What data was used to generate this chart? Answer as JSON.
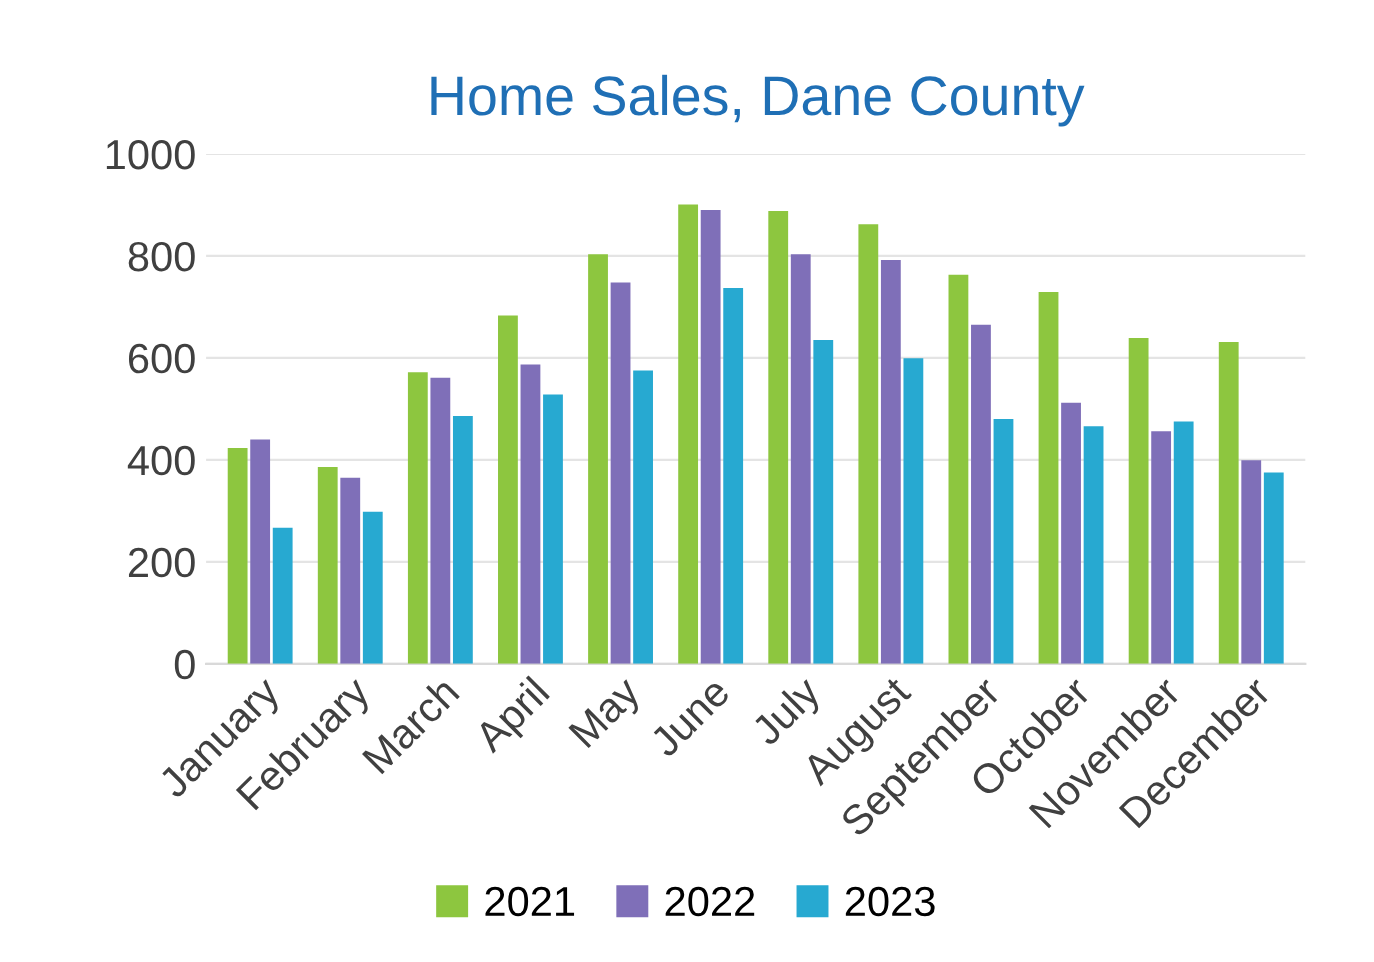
{
  "chart_data": {
    "type": "bar",
    "title": "Home Sales, Dane County",
    "categories": [
      "January",
      "February",
      "March",
      "April",
      "May",
      "June",
      "July",
      "August",
      "September",
      "October",
      "November",
      "December"
    ],
    "series": [
      {
        "name": "2021",
        "color": "#8dc63f",
        "values": [
          423,
          386,
          572,
          683,
          803,
          901,
          888,
          862,
          763,
          729,
          639,
          631
        ]
      },
      {
        "name": "2022",
        "color": "#7f6fb8",
        "values": [
          440,
          365,
          561,
          587,
          748,
          890,
          803,
          792,
          665,
          512,
          456,
          399
        ]
      },
      {
        "name": "2023",
        "color": "#27a9d1",
        "values": [
          267,
          298,
          486,
          528,
          575,
          737,
          635,
          599,
          480,
          466,
          475,
          375
        ]
      }
    ],
    "ylim": [
      0,
      1000
    ],
    "yticks": [
      0,
      200,
      400,
      600,
      800,
      1000
    ],
    "grid": "y",
    "legend": "bottom"
  }
}
